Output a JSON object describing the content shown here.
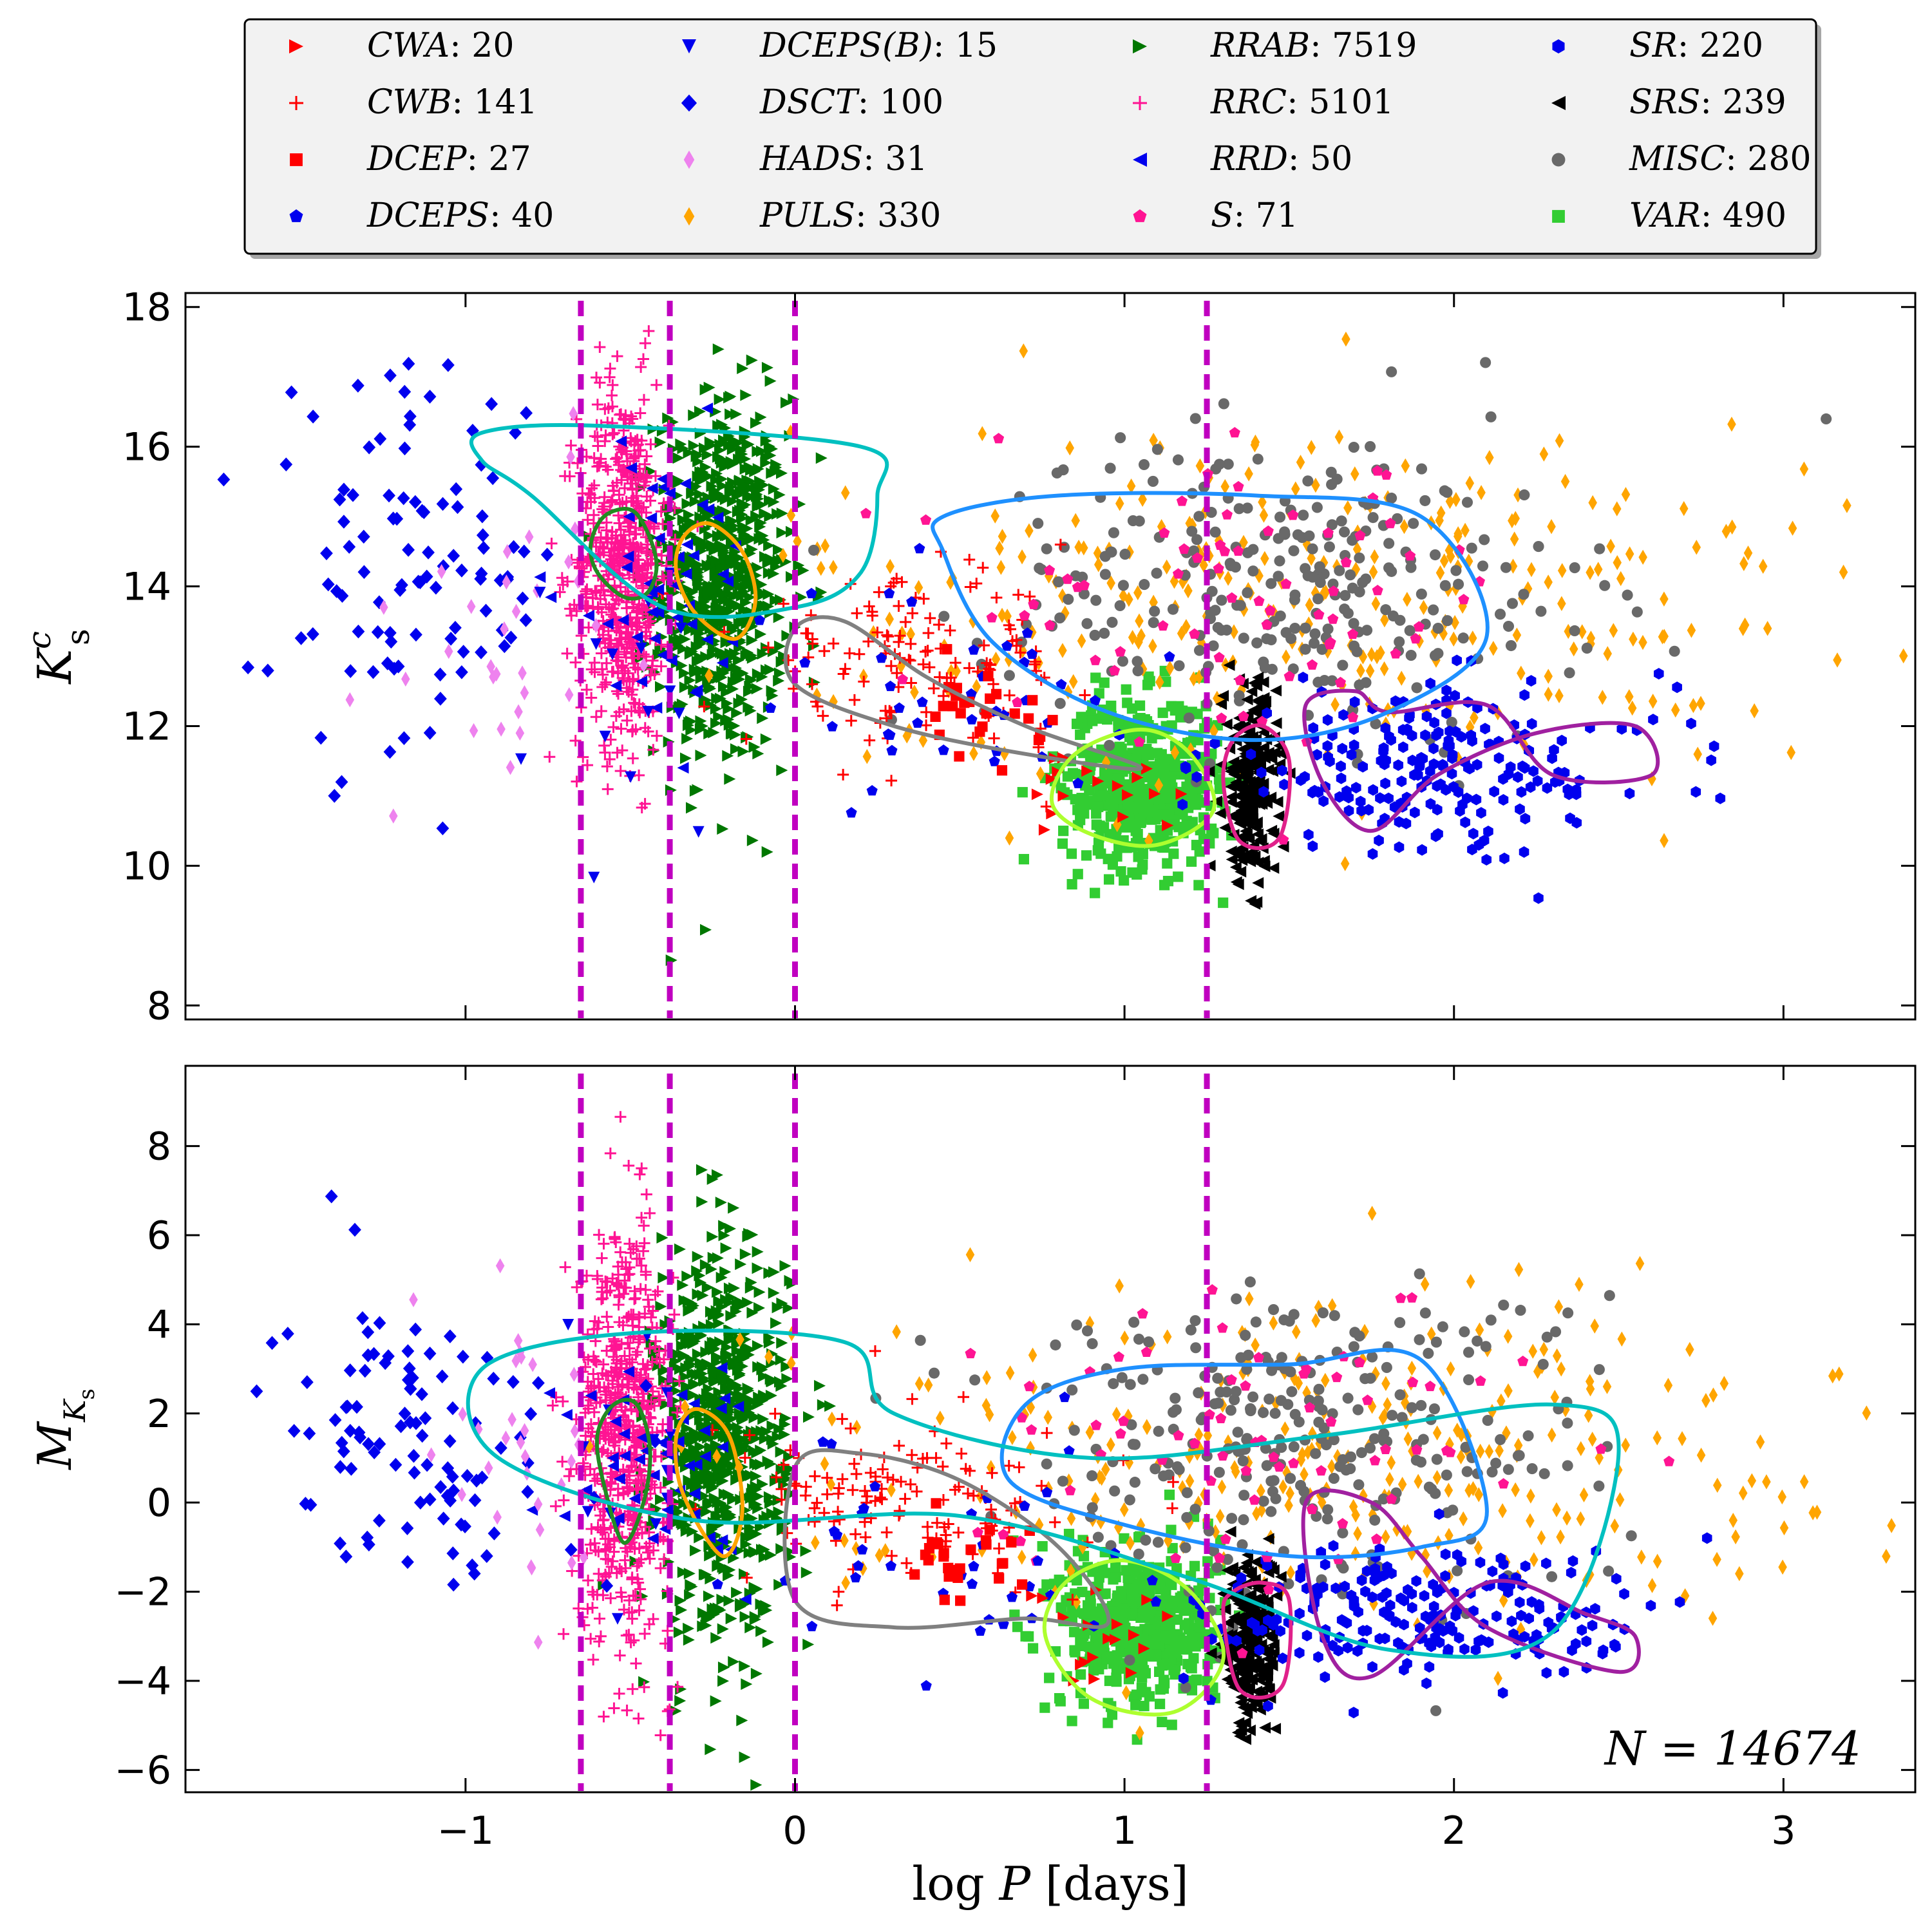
{
  "figure": {
    "n_label": "N = 14674"
  },
  "chart_data": [
    {
      "type": "scatter",
      "panel": "top",
      "ylabel": "K_s^c",
      "xlim": [
        -1.85,
        3.4
      ],
      "ylim": [
        18.2,
        7.8
      ],
      "yticks": [
        "8",
        "10",
        "12",
        "14",
        "16",
        "18"
      ],
      "ytick_values": [
        8,
        10,
        12,
        14,
        16,
        18
      ],
      "vlines": [
        -0.65,
        -0.38,
        0.0,
        1.25
      ],
      "vline_color": "#c000c0"
    },
    {
      "type": "scatter",
      "panel": "bottom",
      "ylabel": "M_Ks",
      "xlabel": "log P [days]",
      "xlim": [
        -1.85,
        3.4
      ],
      "ylim": [
        9.8,
        -6.5
      ],
      "yticks": [
        "−6",
        "−4",
        "−2",
        "0",
        "2",
        "4",
        "6",
        "8"
      ],
      "ytick_values": [
        -6,
        -4,
        -2,
        0,
        2,
        4,
        6,
        8
      ],
      "xticks": [
        "−1",
        "0",
        "1",
        "2",
        "3"
      ],
      "xtick_values": [
        -1,
        0,
        1,
        2,
        3
      ],
      "vlines": [
        -0.65,
        -0.38,
        0.0,
        1.25
      ],
      "vline_color": "#c000c0"
    }
  ],
  "legend": [
    {
      "name": "CWA",
      "count": "20",
      "label": "CWA: 20",
      "marker": "tri-right",
      "color": "#ff0000",
      "top": {
        "xc": 0.95,
        "xs": 0.12,
        "yc": 11.0,
        "ys": 0.3,
        "n": 18
      },
      "bot": {
        "xc": 0.95,
        "xs": 0.12,
        "yc": -3.0,
        "ys": 0.7,
        "n": 18
      }
    },
    {
      "name": "CWB",
      "count": "141",
      "label": "CWB: 141",
      "marker": "plus",
      "color": "#ff0000",
      "top": {
        "xc": 0.35,
        "xs": 0.25,
        "yc": 12.9,
        "ys": 0.6,
        "n": 130
      },
      "bot": {
        "xc": 0.35,
        "xs": 0.25,
        "yc": 0.0,
        "ys": 0.9,
        "n": 130
      }
    },
    {
      "name": "DCEP",
      "count": "27",
      "label": "DCEP: 27",
      "marker": "square",
      "color": "#ff0000",
      "top": {
        "xc": 0.55,
        "xs": 0.1,
        "yc": 12.2,
        "ys": 0.3,
        "n": 26
      },
      "bot": {
        "xc": 0.55,
        "xs": 0.1,
        "yc": -1.6,
        "ys": 0.5,
        "n": 26
      }
    },
    {
      "name": "DCEPS",
      "count": "40",
      "label": "DCEPS: 40",
      "marker": "pentagon",
      "color": "#0000ee",
      "top": {
        "xc": 0.45,
        "xs": 0.3,
        "yc": 12.3,
        "ys": 0.8,
        "n": 38
      },
      "bot": {
        "xc": 0.45,
        "xs": 0.3,
        "yc": -1.0,
        "ys": 1.2,
        "n": 38
      }
    },
    {
      "name": "DCEPS(B)",
      "count": "15",
      "label": "DCEPS(B): 15",
      "marker": "tri-down",
      "color": "#0000ee",
      "top": {
        "xc": -0.5,
        "xs": 0.12,
        "yc": 12.5,
        "ys": 1.2,
        "n": 15
      },
      "bot": {
        "xc": -0.5,
        "xs": 0.12,
        "yc": 0.5,
        "ys": 1.5,
        "n": 15
      }
    },
    {
      "name": "DSCT",
      "count": "100",
      "label": "DSCT: 100",
      "marker": "diamond",
      "color": "#0000ee",
      "top": {
        "xc": -1.15,
        "xs": 0.22,
        "yc": 14.2,
        "ys": 1.4,
        "n": 100
      },
      "bot": {
        "xc": -1.15,
        "xs": 0.22,
        "yc": 1.5,
        "ys": 1.6,
        "n": 100
      }
    },
    {
      "name": "HADS",
      "count": "31",
      "label": "HADS: 31",
      "marker": "diamond-thin",
      "color": "#ee82ee",
      "top": {
        "xc": -0.85,
        "xs": 0.15,
        "yc": 13.5,
        "ys": 1.2,
        "n": 31
      },
      "bot": {
        "xc": -0.85,
        "xs": 0.15,
        "yc": 1.0,
        "ys": 1.6,
        "n": 31
      }
    },
    {
      "name": "PULS",
      "count": "330",
      "label": "PULS: 330",
      "marker": "diamond-thin",
      "color": "#ffa500",
      "top": {
        "xc": 1.6,
        "xs": 0.8,
        "yc": 13.8,
        "ys": 1.3,
        "n": 320
      },
      "bot": {
        "xc": 1.6,
        "xs": 0.8,
        "yc": 1.2,
        "ys": 1.8,
        "n": 320
      }
    },
    {
      "name": "RRAB",
      "count": "7519",
      "label": "RRAB: 7519",
      "marker": "tri-right",
      "color": "#007700",
      "top": {
        "xc": -0.22,
        "xs": 0.1,
        "yc": 14.1,
        "ys": 1.3,
        "n": 700
      },
      "bot": {
        "xc": -0.22,
        "xs": 0.1,
        "yc": 1.4,
        "ys": 2.2,
        "n": 700
      }
    },
    {
      "name": "RRC",
      "count": "5101",
      "label": "RRC: 5101",
      "marker": "plus",
      "color": "#ff1493",
      "top": {
        "xc": -0.52,
        "xs": 0.07,
        "yc": 14.3,
        "ys": 1.3,
        "n": 600
      },
      "bot": {
        "xc": -0.52,
        "xs": 0.07,
        "yc": 1.6,
        "ys": 2.3,
        "n": 600
      }
    },
    {
      "name": "RRD",
      "count": "50",
      "label": "RRD: 50",
      "marker": "tri-left",
      "color": "#0000ee",
      "top": {
        "xc": -0.4,
        "xs": 0.15,
        "yc": 14.0,
        "ys": 1.0,
        "n": 50
      },
      "bot": {
        "xc": -0.4,
        "xs": 0.15,
        "yc": 1.0,
        "ys": 1.3,
        "n": 50
      }
    },
    {
      "name": "S",
      "count": "71",
      "label": "S: 71",
      "marker": "pentagon",
      "color": "#ff1493",
      "top": {
        "xc": 1.4,
        "xs": 0.4,
        "yc": 13.8,
        "ys": 1.0,
        "n": 71
      },
      "bot": {
        "xc": 1.4,
        "xs": 0.4,
        "yc": 1.5,
        "ys": 1.7,
        "n": 71
      }
    },
    {
      "name": "SR",
      "count": "220",
      "label": "SR: 220",
      "marker": "hexagon",
      "color": "#0000ee",
      "top": {
        "xc": 1.95,
        "xs": 0.35,
        "yc": 11.4,
        "ys": 0.6,
        "n": 210
      },
      "bot": {
        "xc": 1.95,
        "xs": 0.35,
        "yc": -2.5,
        "ys": 0.8,
        "n": 210
      }
    },
    {
      "name": "SRS",
      "count": "239",
      "label": "SRS: 239",
      "marker": "tri-left",
      "color": "#000000",
      "top": {
        "xc": 1.38,
        "xs": 0.04,
        "yc": 11.2,
        "ys": 0.7,
        "n": 230
      },
      "bot": {
        "xc": 1.38,
        "xs": 0.04,
        "yc": -3.2,
        "ys": 1.0,
        "n": 230
      }
    },
    {
      "name": "MISC",
      "count": "280",
      "label": "MISC: 280",
      "marker": "circle",
      "color": "#696969",
      "top": {
        "xc": 1.5,
        "xs": 0.45,
        "yc": 14.0,
        "ys": 1.1,
        "n": 280
      },
      "bot": {
        "xc": 1.5,
        "xs": 0.45,
        "yc": 1.5,
        "ys": 1.8,
        "n": 280
      }
    },
    {
      "name": "VAR",
      "count": "490",
      "label": "VAR: 490",
      "marker": "square",
      "color": "#32cd32",
      "top": {
        "xc": 1.05,
        "xs": 0.12,
        "yc": 11.2,
        "ys": 0.6,
        "n": 480
      },
      "bot": {
        "xc": 1.05,
        "xs": 0.12,
        "yc": -2.8,
        "ys": 0.9,
        "n": 480
      }
    }
  ],
  "contours": [
    {
      "name": "RRC-contour",
      "color": "#228b22",
      "top": [
        [
          -0.62,
          14.6
        ],
        [
          -0.6,
          14.2
        ],
        [
          -0.52,
          13.85
        ],
        [
          -0.45,
          13.9
        ],
        [
          -0.42,
          14.3
        ],
        [
          -0.45,
          14.8
        ],
        [
          -0.5,
          15.1
        ],
        [
          -0.58,
          15.0
        ]
      ],
      "bot": [
        [
          -0.6,
          1.5
        ],
        [
          -0.58,
          0.4
        ],
        [
          -0.52,
          -0.9
        ],
        [
          -0.46,
          0.0
        ],
        [
          -0.44,
          1.2
        ],
        [
          -0.48,
          2.2
        ],
        [
          -0.55,
          2.2
        ]
      ]
    },
    {
      "name": "RRAB-contour",
      "color": "#ffa500",
      "top": [
        [
          -0.36,
          14.2
        ],
        [
          -0.3,
          13.6
        ],
        [
          -0.18,
          13.25
        ],
        [
          -0.12,
          13.8
        ],
        [
          -0.16,
          14.5
        ],
        [
          -0.26,
          14.9
        ],
        [
          -0.34,
          14.7
        ]
      ],
      "bot": [
        [
          -0.36,
          1.5
        ],
        [
          -0.34,
          0.2
        ],
        [
          -0.22,
          -1.2
        ],
        [
          -0.16,
          -0.2
        ],
        [
          -0.2,
          1.5
        ],
        [
          -0.3,
          2.1
        ]
      ]
    },
    {
      "name": "cepheid-contour",
      "color": "#808080",
      "top": [
        [
          0.0,
          12.6
        ],
        [
          0.3,
          12.0
        ],
        [
          0.7,
          11.6
        ],
        [
          1.05,
          11.4
        ],
        [
          0.7,
          12.0
        ],
        [
          0.4,
          12.7
        ],
        [
          0.15,
          13.5
        ],
        [
          0.0,
          13.4
        ]
      ],
      "bot": [
        [
          0.0,
          -2.2
        ],
        [
          0.3,
          -2.8
        ],
        [
          0.7,
          -2.6
        ],
        [
          0.95,
          -2.7
        ],
        [
          0.8,
          -1.0
        ],
        [
          0.5,
          0.5
        ],
        [
          0.2,
          1.1
        ],
        [
          0.0,
          0.8
        ]
      ]
    },
    {
      "name": "VAR-contour",
      "color": "#adff2f",
      "top": [
        [
          0.78,
          10.9
        ],
        [
          0.9,
          10.45
        ],
        [
          1.1,
          10.3
        ],
        [
          1.27,
          10.8
        ],
        [
          1.2,
          11.6
        ],
        [
          1.05,
          11.95
        ],
        [
          0.85,
          11.6
        ]
      ],
      "bot": [
        [
          0.76,
          -3.0
        ],
        [
          0.9,
          -4.4
        ],
        [
          1.15,
          -4.7
        ],
        [
          1.3,
          -3.5
        ],
        [
          1.2,
          -2.0
        ],
        [
          1.0,
          -1.3
        ],
        [
          0.82,
          -1.8
        ]
      ]
    },
    {
      "name": "SRS-contour",
      "color": "#e0218a",
      "top": [
        [
          1.3,
          11.2
        ],
        [
          1.35,
          10.35
        ],
        [
          1.47,
          10.4
        ],
        [
          1.5,
          11.5
        ],
        [
          1.42,
          12.0
        ],
        [
          1.33,
          11.8
        ]
      ],
      "bot": [
        [
          1.3,
          -2.5
        ],
        [
          1.35,
          -4.2
        ],
        [
          1.48,
          -4.1
        ],
        [
          1.5,
          -2.2
        ],
        [
          1.42,
          -1.8
        ],
        [
          1.33,
          -2.0
        ]
      ]
    },
    {
      "name": "SR-contour",
      "color": "#a020a0",
      "top": [
        [
          1.55,
          12.3
        ],
        [
          1.7,
          12.5
        ],
        [
          1.8,
          12.2
        ],
        [
          2.1,
          12.3
        ],
        [
          2.3,
          11.3
        ],
        [
          2.6,
          11.3
        ],
        [
          2.55,
          12.0
        ],
        [
          2.25,
          11.9
        ],
        [
          1.95,
          11.3
        ],
        [
          1.75,
          10.5
        ],
        [
          1.6,
          11.2
        ]
      ],
      "bot": [
        [
          1.55,
          0.0
        ],
        [
          1.75,
          0.0
        ],
        [
          1.9,
          -1.2
        ],
        [
          2.1,
          -2.8
        ],
        [
          2.5,
          -3.8
        ],
        [
          2.55,
          -3.0
        ],
        [
          2.4,
          -2.5
        ],
        [
          2.1,
          -1.8
        ],
        [
          1.75,
          -3.9
        ],
        [
          1.6,
          -3.0
        ]
      ]
    },
    {
      "name": "MISC-contour",
      "color": "#1e90ff",
      "top": [
        [
          0.45,
          14.5
        ],
        [
          0.6,
          13.2
        ],
        [
          0.95,
          12.2
        ],
        [
          1.4,
          11.8
        ],
        [
          1.8,
          12.2
        ],
        [
          2.1,
          13.3
        ],
        [
          1.9,
          15.0
        ],
        [
          1.4,
          15.3
        ],
        [
          0.8,
          15.3
        ],
        [
          0.45,
          15.0
        ]
      ],
      "bot": [
        [
          0.65,
          0.5
        ],
        [
          1.0,
          -0.5
        ],
        [
          1.5,
          -1.2
        ],
        [
          1.9,
          -1.0
        ],
        [
          2.1,
          -0.2
        ],
        [
          1.9,
          3.2
        ],
        [
          1.5,
          3.1
        ],
        [
          1.0,
          3.0
        ],
        [
          0.7,
          2.2
        ]
      ]
    },
    {
      "name": "PULS-contour",
      "color": "#00c0c0",
      "top": [
        [
          -0.95,
          16.2
        ],
        [
          -0.6,
          16.3
        ],
        [
          0.2,
          16.0
        ],
        [
          0.25,
          15.3
        ],
        [
          0.2,
          14.2
        ],
        [
          0.0,
          13.7
        ],
        [
          -0.4,
          13.7
        ],
        [
          -0.8,
          15.3
        ],
        [
          -0.95,
          15.8
        ]
      ],
      "bot": [
        [
          -0.95,
          3.0
        ],
        [
          -0.5,
          3.8
        ],
        [
          0.15,
          3.6
        ],
        [
          0.3,
          2.0
        ],
        [
          0.9,
          1.0
        ],
        [
          1.6,
          1.5
        ],
        [
          2.3,
          2.2
        ],
        [
          2.5,
          1.2
        ],
        [
          2.3,
          -2.9
        ],
        [
          1.8,
          -3.3
        ],
        [
          1.2,
          -1.7
        ],
        [
          0.5,
          -0.3
        ],
        [
          -0.3,
          -0.4
        ],
        [
          -0.9,
          1.0
        ]
      ]
    }
  ]
}
